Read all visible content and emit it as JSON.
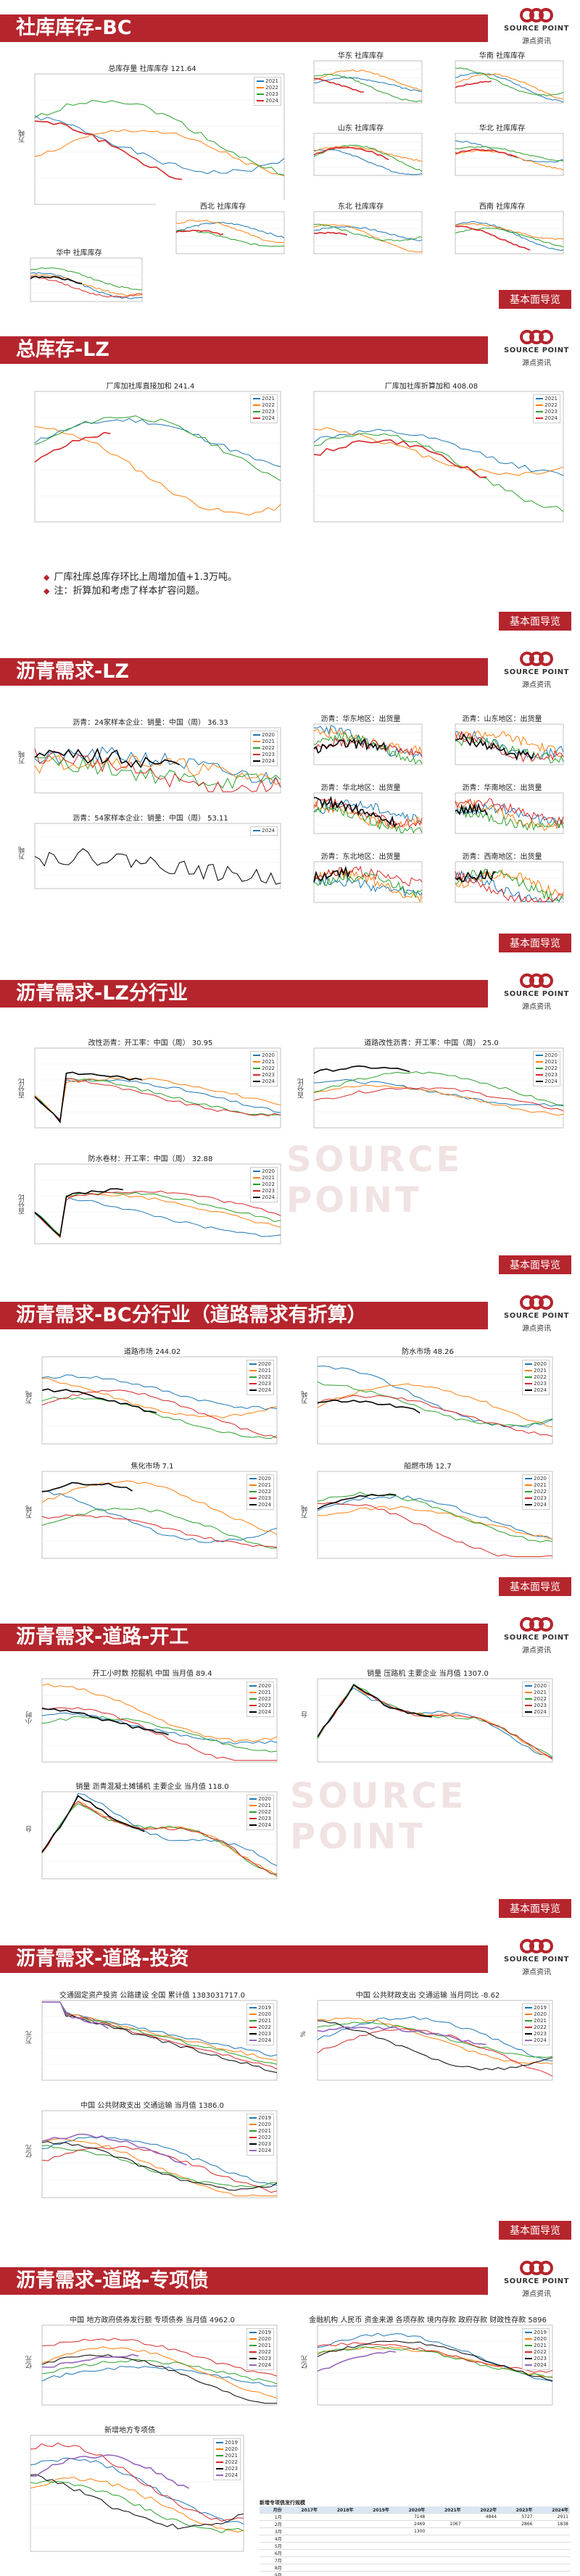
{
  "brand": {
    "name": "SOURCE POINT",
    "name_cn": "源点资讯",
    "accent": "#b5252d"
  },
  "watermark": "SOURCE POINT",
  "nav_button_label": "基本面导览",
  "sections": [
    {
      "id": "s1",
      "title": "社库库存-BC",
      "charts": [
        {
          "title": "总库存量 社库库存 121.64",
          "ylabel": "万吨"
        },
        {
          "title": "华东 社库库存",
          "ylabel": ""
        },
        {
          "title": "华南 社库库存",
          "ylabel": ""
        },
        {
          "title": "山东 社库库存",
          "ylabel": ""
        },
        {
          "title": "华北 社库库存",
          "ylabel": ""
        },
        {
          "title": "西北 社库库存",
          "ylabel": ""
        },
        {
          "title": "东北 社库库存",
          "ylabel": ""
        },
        {
          "title": "西南 社库库存",
          "ylabel": ""
        },
        {
          "title": "华中 社库库存",
          "ylabel": ""
        }
      ]
    },
    {
      "id": "s2",
      "title": "总库存-LZ",
      "charts": [
        {
          "title": "厂库加社库直接加和 241.4",
          "ylabel": ""
        },
        {
          "title": "厂库加社库折算加和 408.08",
          "ylabel": ""
        }
      ],
      "notes": [
        "厂库社库总库存环比上周增加值+1.3万吨。",
        "注：折算加和考虑了样本扩容问题。"
      ]
    },
    {
      "id": "s3",
      "title": "沥青需求-LZ",
      "charts": [
        {
          "title": "沥青：24家样本企业：销量：中国（周） 36.33",
          "ylabel": "万吨"
        },
        {
          "title": "沥青：54家样本企业：销量：中国（周） 53.11",
          "ylabel": "万吨"
        },
        {
          "title": "沥青：华东地区：出货量",
          "ylabel": ""
        },
        {
          "title": "沥青：山东地区：出货量",
          "ylabel": ""
        },
        {
          "title": "沥青：华北地区：出货量",
          "ylabel": ""
        },
        {
          "title": "沥青：华南地区：出货量",
          "ylabel": ""
        },
        {
          "title": "沥青：东北地区：出货量",
          "ylabel": ""
        },
        {
          "title": "沥青：西南地区：出货量",
          "ylabel": ""
        }
      ]
    },
    {
      "id": "s4",
      "title": "沥青需求-LZ分行业",
      "charts": [
        {
          "title": "改性沥青：开工率：中国（周） 30.95",
          "ylabel": "百分比"
        },
        {
          "title": "道路改性沥青：开工率：中国（周） 25.0",
          "ylabel": "百分比"
        },
        {
          "title": "防水卷材：开工率：中国（周） 32.88",
          "ylabel": "百分比"
        }
      ]
    },
    {
      "id": "s5",
      "title": "沥青需求-BC分行业（道路需求有折算）",
      "charts": [
        {
          "title": "道路市场 244.02",
          "ylabel": "万吨"
        },
        {
          "title": "防水市场 48.26",
          "ylabel": "万吨"
        },
        {
          "title": "焦化市场 7.1",
          "ylabel": "万吨"
        },
        {
          "title": "船燃市场 12.7",
          "ylabel": "万吨"
        }
      ]
    },
    {
      "id": "s6",
      "title": "沥青需求-道路-开工",
      "charts": [
        {
          "title": "开工小时数 挖掘机 中国 当月值 89.4",
          "ylabel": "小时"
        },
        {
          "title": "销量 压路机 主要企业 当月值 1307.0",
          "ylabel": "台"
        },
        {
          "title": "销量 沥青混凝土摊铺机 主要企业 当月值 118.0",
          "ylabel": "台"
        }
      ]
    },
    {
      "id": "s7",
      "title": "沥青需求-道路-投资",
      "charts": [
        {
          "title": "交通固定资产投资 公路建设 全国 累计值 1383031717.0",
          "ylabel": "万元"
        },
        {
          "title": "中国 公共财政支出 交通运输 当月同比 -8.62",
          "ylabel": "%"
        },
        {
          "title": "中国 公共财政支出 交通运输 当月值 1386.0",
          "ylabel": "亿元"
        }
      ]
    },
    {
      "id": "s8",
      "title": "沥青需求-道路-专项债",
      "charts": [
        {
          "title": "中国 地方政府债券发行额 专项债券 当月值 4962.0",
          "ylabel": "亿元"
        },
        {
          "title": "金融机构 人民币 资金来源 各项存款 境内存款 政府存款 财政性存款 5896",
          "ylabel": "亿元"
        },
        {
          "title": "新增地方专项债",
          "ylabel": ""
        }
      ],
      "table": {
        "caption": "新增专项债发行规模",
        "header": [
          "月份",
          "2017年",
          "2018年",
          "2019年",
          "2020年",
          "2021年",
          "2022年",
          "2023年",
          "2024年"
        ],
        "rows": [
          [
            "1月",
            "",
            "",
            "",
            "7148",
            "",
            "4844",
            "5727",
            "2911"
          ],
          [
            "2月",
            "",
            "",
            "",
            "2469",
            "1067",
            "",
            "2866",
            "1838"
          ],
          [
            "3月",
            "",
            "",
            "",
            "1300",
            "",
            "",
            "",
            ""
          ],
          [
            "4月",
            "",
            "",
            "",
            "",
            "",
            "",
            "",
            ""
          ],
          [
            "5月",
            "",
            "",
            "",
            "",
            "",
            "",
            "",
            ""
          ],
          [
            "6月",
            "",
            "",
            "",
            "",
            "",
            "",
            "",
            ""
          ],
          [
            "7月",
            "",
            "",
            "",
            "",
            "",
            "",
            "",
            ""
          ],
          [
            "8月",
            "",
            "",
            "",
            "",
            "",
            "",
            "",
            ""
          ],
          [
            "9月",
            "",
            "",
            "",
            "",
            "",
            "",
            "",
            ""
          ],
          [
            "10月",
            "",
            "",
            "",
            "",
            "",
            "",
            "",
            ""
          ],
          [
            "11月",
            "",
            "",
            "",
            "",
            "",
            "",
            "",
            ""
          ],
          [
            "12月",
            "",
            "",
            "",
            "",
            "",
            "",
            "",
            ""
          ]
        ],
        "total": [
          "合计",
          "",
          "",
          "",
          "",
          "",
          "",
          "",
          ""
        ]
      }
    }
  ],
  "series_colors": [
    "#1f77b4",
    "#ff7f0e",
    "#2ca02c",
    "#d62728",
    "#000000",
    "#9467bd"
  ],
  "legend_years": [
    "2019",
    "2020",
    "2021",
    "2022",
    "2023",
    "2024"
  ]
}
